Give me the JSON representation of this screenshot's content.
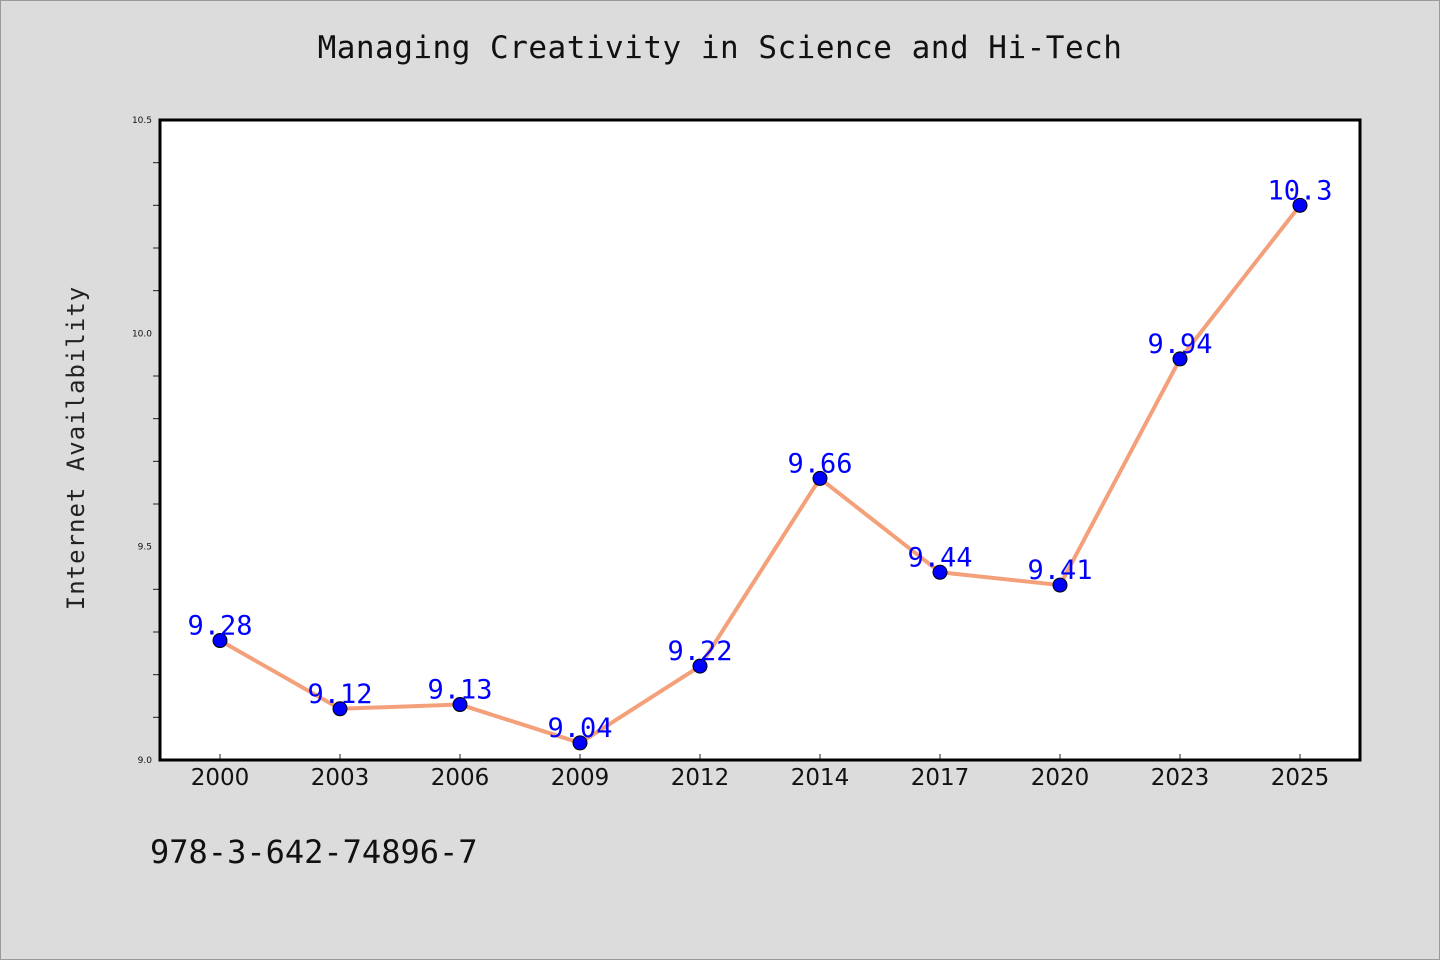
{
  "chart_data": {
    "type": "line",
    "title": "Managing Creativity in Science and Hi-Tech",
    "xlabel": "",
    "ylabel": "Internet Availability",
    "categories": [
      "2000",
      "2003",
      "2006",
      "2009",
      "2012",
      "2014",
      "2017",
      "2020",
      "2023",
      "2025"
    ],
    "series": [
      {
        "values": [
          9.28,
          9.12,
          9.13,
          9.04,
          9.22,
          9.66,
          9.44,
          9.41,
          9.94,
          10.3
        ],
        "labels": [
          "9.28",
          "9.12",
          "9.13",
          "9.04",
          "9.22",
          "9.66",
          "9.44",
          "9.41",
          "9.94",
          "10.3"
        ]
      }
    ],
    "ylim": [
      9.0,
      10.5
    ],
    "yticks": [
      "9.0",
      "9.5",
      "10.0",
      "10.5"
    ],
    "grid": false,
    "line_color": "#f4a07a",
    "marker_color": "#0000ff",
    "label_color": "#0000ff",
    "background_color": "#dcdcdc",
    "plot_background_color": "#ffffff"
  },
  "footer": {
    "code": "978-3-642-74896-7"
  }
}
